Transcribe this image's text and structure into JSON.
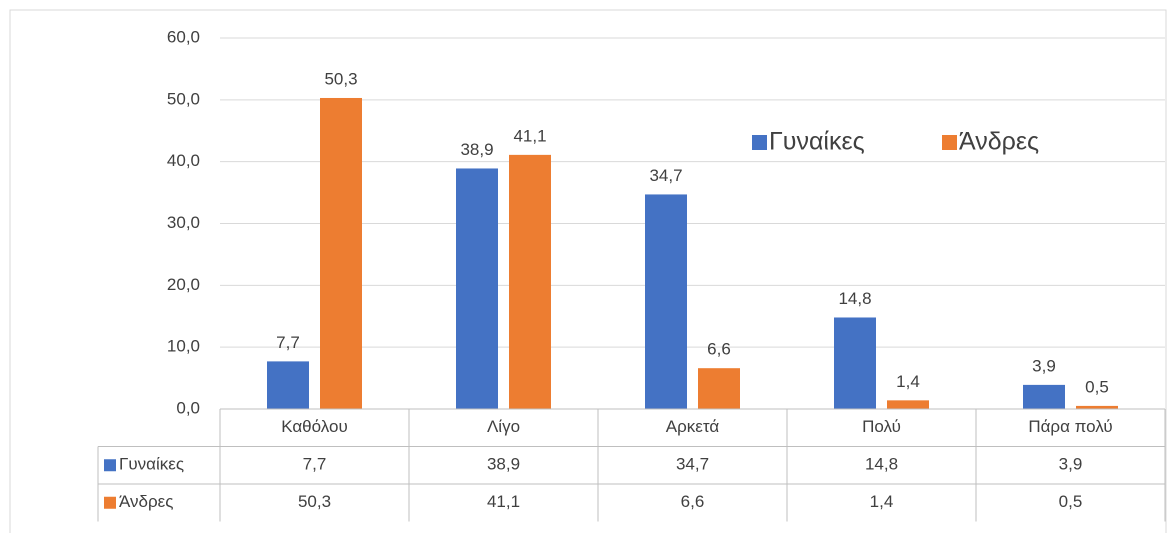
{
  "chart_data": {
    "type": "bar",
    "categories": [
      "Καθόλου",
      "Λίγο",
      "Αρκετά",
      "Πολύ",
      "Πάρα πολύ"
    ],
    "series": [
      {
        "name": "Γυναίκες",
        "color": "#4472c4",
        "values": [
          7.7,
          38.9,
          34.7,
          14.8,
          3.9
        ],
        "value_labels": [
          "7,7",
          "38,9",
          "34,7",
          "14,8",
          "3,9"
        ]
      },
      {
        "name": "Άνδρες",
        "color": "#ed7d31",
        "values": [
          50.3,
          41.1,
          6.6,
          1.4,
          0.5
        ],
        "value_labels": [
          "50,3",
          "41,1",
          "6,6",
          "1,4",
          "0,5"
        ]
      }
    ],
    "ylim": [
      0,
      60
    ],
    "yticks": [
      {
        "value": 0,
        "label": "0,0"
      },
      {
        "value": 10,
        "label": "10,0"
      },
      {
        "value": 20,
        "label": "20,0"
      },
      {
        "value": 30,
        "label": "30,0"
      },
      {
        "value": 40,
        "label": "40,0"
      },
      {
        "value": 50,
        "label": "50,0"
      },
      {
        "value": 60,
        "label": "60,0"
      }
    ],
    "grid": true,
    "legend": "upper right",
    "data_table": true
  }
}
